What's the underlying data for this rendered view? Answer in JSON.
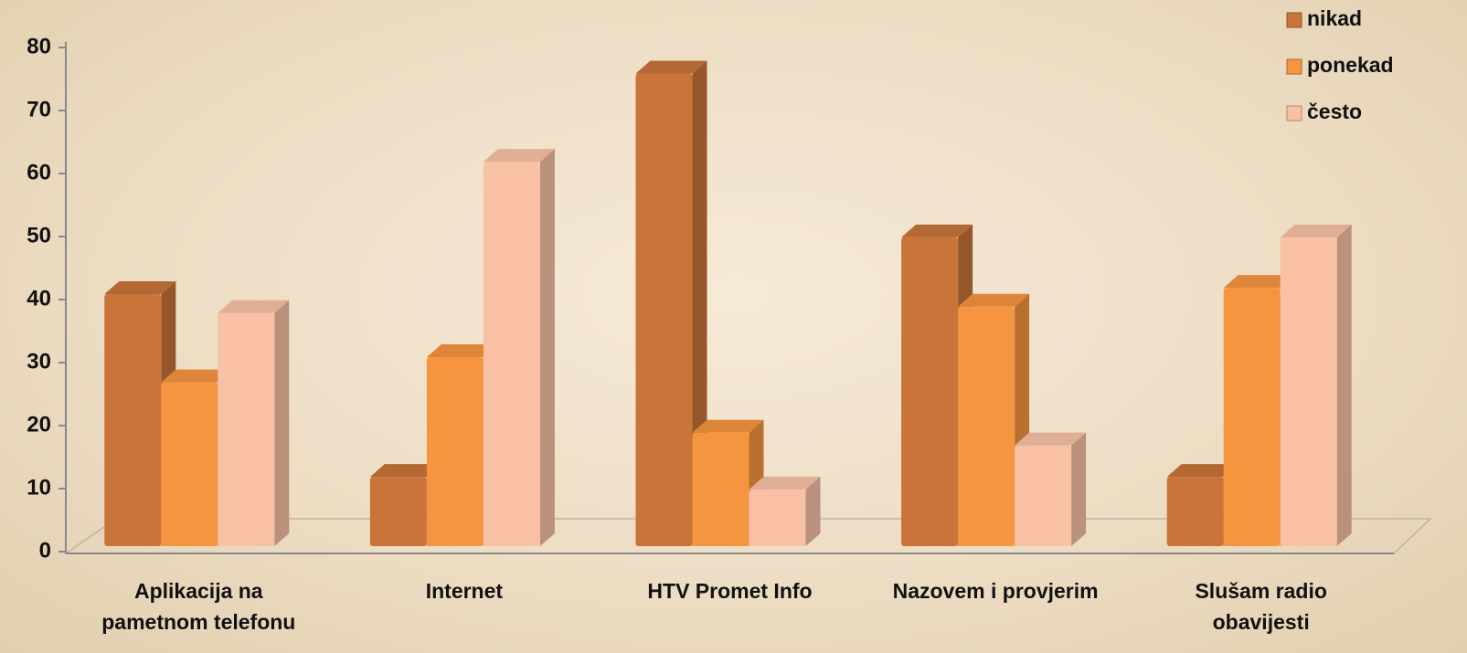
{
  "chart_data": {
    "type": "bar3d",
    "categories": [
      "Aplikacija na pametnom telefonu",
      "Internet",
      "HTV Promet Info",
      "Nazovem i provjerim",
      "Slušam radio obavijesti"
    ],
    "series": [
      {
        "name": "nikad",
        "color": "#c8743a",
        "values": [
          40,
          11,
          75,
          49,
          11
        ]
      },
      {
        "name": "ponekad",
        "color": "#f5953f",
        "values": [
          26,
          30,
          18,
          38,
          41
        ]
      },
      {
        "name": "često",
        "color": "#f8c1a6",
        "values": [
          37,
          61,
          9,
          16,
          49
        ]
      }
    ],
    "ylim": [
      0,
      80
    ],
    "yticks": [
      0,
      10,
      20,
      30,
      40,
      50,
      60,
      70,
      80
    ],
    "legend": "top-right"
  }
}
